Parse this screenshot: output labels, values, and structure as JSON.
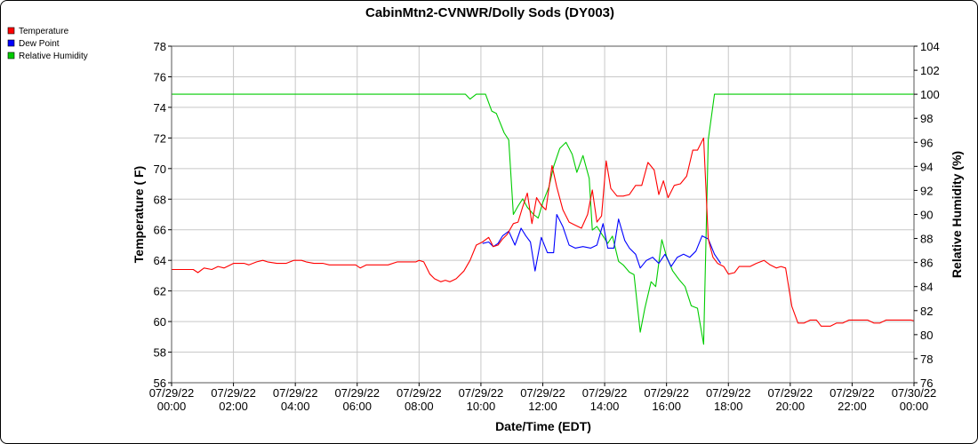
{
  "chart_data": {
    "type": "line",
    "title": "CabinMtn2-CVNWR/Dolly Sods (DY003)",
    "xlabel": "Date/Time (EDT)",
    "ylabel": "Temperature ( F)",
    "y2label": "Relative Humidity (%)",
    "xlim": [
      "07/29/22 00:00",
      "07/30/22 00:00"
    ],
    "ylim": [
      56,
      78
    ],
    "y2lim": [
      76,
      104
    ],
    "grid": true,
    "legend_position": "top-left",
    "x_ticks": [
      {
        "hour": 0,
        "date": "07/29/22",
        "time": "00:00"
      },
      {
        "hour": 2,
        "date": "07/29/22",
        "time": "02:00"
      },
      {
        "hour": 4,
        "date": "07/29/22",
        "time": "04:00"
      },
      {
        "hour": 6,
        "date": "07/29/22",
        "time": "06:00"
      },
      {
        "hour": 8,
        "date": "07/29/22",
        "time": "08:00"
      },
      {
        "hour": 10,
        "date": "07/29/22",
        "time": "10:00"
      },
      {
        "hour": 12,
        "date": "07/29/22",
        "time": "12:00"
      },
      {
        "hour": 14,
        "date": "07/29/22",
        "time": "14:00"
      },
      {
        "hour": 16,
        "date": "07/29/22",
        "time": "16:00"
      },
      {
        "hour": 18,
        "date": "07/29/22",
        "time": "18:00"
      },
      {
        "hour": 20,
        "date": "07/29/22",
        "time": "20:00"
      },
      {
        "hour": 22,
        "date": "07/29/22",
        "time": "22:00"
      },
      {
        "hour": 24,
        "date": "07/30/22",
        "time": "00:00"
      }
    ],
    "y_ticks": [
      "56",
      "58",
      "60",
      "62",
      "64",
      "66",
      "68",
      "70",
      "72",
      "74",
      "76",
      "78"
    ],
    "y2_ticks": [
      "76",
      "78",
      "80",
      "82",
      "84",
      "86",
      "88",
      "90",
      "92",
      "94",
      "96",
      "98",
      "100",
      "102",
      "104"
    ],
    "series": [
      {
        "name": "Temperature",
        "axis": "left",
        "color": "#ff0000",
        "points": [
          [
            0.0,
            63.4
          ],
          [
            0.7,
            63.4
          ],
          [
            0.85,
            63.2
          ],
          [
            1.05,
            63.5
          ],
          [
            1.3,
            63.4
          ],
          [
            1.5,
            63.6
          ],
          [
            1.7,
            63.5
          ],
          [
            2.0,
            63.8
          ],
          [
            2.35,
            63.8
          ],
          [
            2.5,
            63.7
          ],
          [
            2.75,
            63.9
          ],
          [
            2.95,
            64.0
          ],
          [
            3.1,
            63.9
          ],
          [
            3.4,
            63.8
          ],
          [
            3.7,
            63.8
          ],
          [
            3.95,
            64.0
          ],
          [
            4.2,
            64.0
          ],
          [
            4.35,
            63.9
          ],
          [
            4.6,
            63.8
          ],
          [
            4.9,
            63.8
          ],
          [
            5.1,
            63.7
          ],
          [
            5.4,
            63.7
          ],
          [
            5.7,
            63.7
          ],
          [
            5.95,
            63.7
          ],
          [
            6.1,
            63.5
          ],
          [
            6.3,
            63.7
          ],
          [
            6.7,
            63.7
          ],
          [
            7.0,
            63.7
          ],
          [
            7.3,
            63.9
          ],
          [
            7.6,
            63.9
          ],
          [
            7.9,
            63.9
          ],
          [
            8.0,
            64.0
          ],
          [
            8.15,
            63.9
          ],
          [
            8.35,
            63.1
          ],
          [
            8.5,
            62.8
          ],
          [
            8.7,
            62.6
          ],
          [
            8.85,
            62.7
          ],
          [
            9.0,
            62.6
          ],
          [
            9.2,
            62.8
          ],
          [
            9.45,
            63.3
          ],
          [
            9.65,
            64.0
          ],
          [
            9.85,
            65.0
          ],
          [
            10.05,
            65.2
          ],
          [
            10.25,
            65.5
          ],
          [
            10.4,
            64.9
          ],
          [
            10.55,
            65.0
          ],
          [
            10.7,
            65.4
          ],
          [
            10.85,
            65.7
          ],
          [
            11.05,
            66.4
          ],
          [
            11.2,
            66.5
          ],
          [
            11.35,
            67.5
          ],
          [
            11.5,
            68.4
          ],
          [
            11.65,
            66.4
          ],
          [
            11.8,
            68.1
          ],
          [
            11.95,
            67.6
          ],
          [
            12.1,
            67.3
          ],
          [
            12.3,
            70.2
          ],
          [
            12.45,
            68.8
          ],
          [
            12.65,
            67.3
          ],
          [
            12.85,
            66.5
          ],
          [
            13.05,
            66.3
          ],
          [
            13.25,
            66.1
          ],
          [
            13.45,
            67.0
          ],
          [
            13.6,
            68.6
          ],
          [
            13.75,
            66.5
          ],
          [
            13.9,
            66.9
          ],
          [
            14.05,
            70.5
          ],
          [
            14.2,
            68.7
          ],
          [
            14.4,
            68.2
          ],
          [
            14.6,
            68.2
          ],
          [
            14.8,
            68.3
          ],
          [
            15.0,
            68.9
          ],
          [
            15.2,
            68.9
          ],
          [
            15.4,
            70.4
          ],
          [
            15.6,
            69.9
          ],
          [
            15.75,
            68.3
          ],
          [
            15.9,
            69.2
          ],
          [
            16.05,
            68.1
          ],
          [
            16.25,
            68.9
          ],
          [
            16.45,
            69.0
          ],
          [
            16.65,
            69.5
          ],
          [
            16.85,
            71.2
          ],
          [
            17.0,
            71.2
          ],
          [
            17.2,
            72.0
          ],
          [
            17.35,
            65.4
          ],
          [
            17.5,
            64.2
          ],
          [
            17.65,
            63.8
          ],
          [
            17.85,
            63.6
          ],
          [
            18.0,
            63.1
          ],
          [
            18.2,
            63.2
          ],
          [
            18.35,
            63.6
          ],
          [
            18.5,
            63.6
          ],
          [
            18.7,
            63.6
          ],
          [
            18.9,
            63.8
          ],
          [
            19.15,
            64.0
          ],
          [
            19.35,
            63.7
          ],
          [
            19.55,
            63.5
          ],
          [
            19.7,
            63.6
          ],
          [
            19.85,
            63.5
          ],
          [
            20.05,
            61.0
          ],
          [
            20.25,
            59.9
          ],
          [
            20.45,
            59.9
          ],
          [
            20.65,
            60.1
          ],
          [
            20.85,
            60.1
          ],
          [
            21.0,
            59.7
          ],
          [
            21.3,
            59.7
          ],
          [
            21.5,
            59.9
          ],
          [
            21.7,
            59.9
          ],
          [
            21.9,
            60.1
          ],
          [
            22.2,
            60.1
          ],
          [
            22.5,
            60.1
          ],
          [
            22.7,
            59.9
          ],
          [
            22.9,
            59.9
          ],
          [
            23.1,
            60.1
          ],
          [
            23.5,
            60.1
          ],
          [
            23.9,
            60.1
          ],
          [
            24.1,
            60.0
          ],
          [
            24.35,
            59.7
          ],
          [
            24.6,
            59.7
          ],
          [
            25.0,
            59.7
          ]
        ]
      },
      {
        "name": "Dew Point",
        "axis": "left",
        "color": "#0000ff",
        "points": [
          [
            10.05,
            65.1
          ],
          [
            10.25,
            65.2
          ],
          [
            10.4,
            64.9
          ],
          [
            10.55,
            65.1
          ],
          [
            10.7,
            65.6
          ],
          [
            10.9,
            65.9
          ],
          [
            11.1,
            65.0
          ],
          [
            11.3,
            66.1
          ],
          [
            11.45,
            65.6
          ],
          [
            11.6,
            65.2
          ],
          [
            11.75,
            63.3
          ],
          [
            11.95,
            65.5
          ],
          [
            12.15,
            64.5
          ],
          [
            12.35,
            64.5
          ],
          [
            12.45,
            67.0
          ],
          [
            12.65,
            66.2
          ],
          [
            12.85,
            65.0
          ],
          [
            13.05,
            64.8
          ],
          [
            13.3,
            64.9
          ],
          [
            13.55,
            64.8
          ],
          [
            13.75,
            65.0
          ],
          [
            13.95,
            66.4
          ],
          [
            14.1,
            64.8
          ],
          [
            14.3,
            64.8
          ],
          [
            14.45,
            66.7
          ],
          [
            14.65,
            65.3
          ],
          [
            14.8,
            64.8
          ],
          [
            15.0,
            64.4
          ],
          [
            15.15,
            63.5
          ],
          [
            15.35,
            64.0
          ],
          [
            15.55,
            64.2
          ],
          [
            15.75,
            63.8
          ],
          [
            15.95,
            64.4
          ],
          [
            16.15,
            63.6
          ],
          [
            16.35,
            64.2
          ],
          [
            16.55,
            64.4
          ],
          [
            16.75,
            64.2
          ],
          [
            16.95,
            64.6
          ],
          [
            17.15,
            65.6
          ],
          [
            17.35,
            65.4
          ],
          [
            17.55,
            64.4
          ],
          [
            17.75,
            63.8
          ]
        ]
      },
      {
        "name": "Relative Humidity",
        "axis": "right",
        "color": "#00cc00",
        "points": [
          [
            0.0,
            100.0
          ],
          [
            9.5,
            100.0
          ],
          [
            9.65,
            99.6
          ],
          [
            9.85,
            100.0
          ],
          [
            10.15,
            100.0
          ],
          [
            10.35,
            98.6
          ],
          [
            10.5,
            98.4
          ],
          [
            10.75,
            96.8
          ],
          [
            10.9,
            96.2
          ],
          [
            11.05,
            90.0
          ],
          [
            11.2,
            90.7
          ],
          [
            11.35,
            91.3
          ],
          [
            11.5,
            90.6
          ],
          [
            11.7,
            90.0
          ],
          [
            11.85,
            89.7
          ],
          [
            12.0,
            91.0
          ],
          [
            12.2,
            92.3
          ],
          [
            12.35,
            94.0
          ],
          [
            12.55,
            95.5
          ],
          [
            12.75,
            96.0
          ],
          [
            12.95,
            95.0
          ],
          [
            13.1,
            93.5
          ],
          [
            13.3,
            94.9
          ],
          [
            13.5,
            93.0
          ],
          [
            13.6,
            88.7
          ],
          [
            13.75,
            89.0
          ],
          [
            13.95,
            88.2
          ],
          [
            14.1,
            87.6
          ],
          [
            14.25,
            88.2
          ],
          [
            14.45,
            86.1
          ],
          [
            14.6,
            85.8
          ],
          [
            14.8,
            85.2
          ],
          [
            14.95,
            85.0
          ],
          [
            15.15,
            80.2
          ],
          [
            15.3,
            82.2
          ],
          [
            15.5,
            84.4
          ],
          [
            15.65,
            84.0
          ],
          [
            15.85,
            87.9
          ],
          [
            16.0,
            86.5
          ],
          [
            16.2,
            85.3
          ],
          [
            16.4,
            84.6
          ],
          [
            16.6,
            84.0
          ],
          [
            16.8,
            82.4
          ],
          [
            17.0,
            82.2
          ],
          [
            17.2,
            79.2
          ],
          [
            17.35,
            96.2
          ],
          [
            17.55,
            100.0
          ],
          [
            25.0,
            100.0
          ]
        ]
      }
    ]
  }
}
